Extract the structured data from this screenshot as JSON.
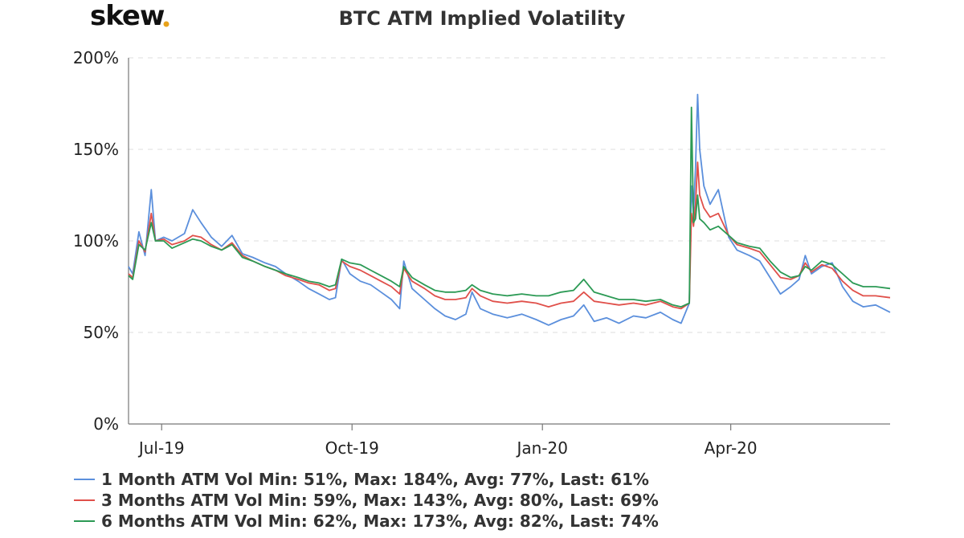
{
  "logo": {
    "text": "skew",
    "dot_color": "#e8a21a"
  },
  "chart_data": {
    "type": "line",
    "title": "BTC ATM Implied Volatility",
    "xlabel": "",
    "ylabel": "",
    "ylim": [
      0,
      200
    ],
    "y_ticks": [
      0,
      50,
      100,
      150,
      200
    ],
    "y_tick_labels": [
      "0%",
      "50%",
      "100%",
      "150%",
      "200%"
    ],
    "y_grid": true,
    "xlim": [
      "2019-06-15",
      "2020-06-17"
    ],
    "x_ticks": [
      "2019-07-01",
      "2019-10-01",
      "2020-01-01",
      "2020-04-01"
    ],
    "x_tick_labels": [
      "Jul-19",
      "Oct-19",
      "Jan-20",
      "Apr-20"
    ],
    "legend_position": "bottom-left",
    "series": [
      {
        "name": "1 Month ATM Vol",
        "color": "#5b8fdc",
        "legend": "1 Month ATM Vol Min: 51%, Max: 184%, Avg: 77%, Last: 61%",
        "points": [
          [
            "2019-06-15",
            86
          ],
          [
            "2019-06-17",
            82
          ],
          [
            "2019-06-20",
            105
          ],
          [
            "2019-06-23",
            92
          ],
          [
            "2019-06-26",
            128
          ],
          [
            "2019-06-28",
            100
          ],
          [
            "2019-07-02",
            102
          ],
          [
            "2019-07-06",
            100
          ],
          [
            "2019-07-12",
            104
          ],
          [
            "2019-07-16",
            117
          ],
          [
            "2019-07-20",
            110
          ],
          [
            "2019-07-25",
            102
          ],
          [
            "2019-07-30",
            97
          ],
          [
            "2019-08-04",
            103
          ],
          [
            "2019-08-09",
            93
          ],
          [
            "2019-08-14",
            91
          ],
          [
            "2019-08-20",
            88
          ],
          [
            "2019-08-25",
            86
          ],
          [
            "2019-08-30",
            82
          ],
          [
            "2019-09-05",
            78
          ],
          [
            "2019-09-10",
            74
          ],
          [
            "2019-09-15",
            71
          ],
          [
            "2019-09-20",
            68
          ],
          [
            "2019-09-23",
            69
          ],
          [
            "2019-09-26",
            90
          ],
          [
            "2019-09-30",
            82
          ],
          [
            "2019-10-05",
            78
          ],
          [
            "2019-10-10",
            76
          ],
          [
            "2019-10-15",
            72
          ],
          [
            "2019-10-20",
            68
          ],
          [
            "2019-10-24",
            63
          ],
          [
            "2019-10-26",
            89
          ],
          [
            "2019-10-30",
            74
          ],
          [
            "2019-11-05",
            68
          ],
          [
            "2019-11-10",
            63
          ],
          [
            "2019-11-15",
            59
          ],
          [
            "2019-11-20",
            57
          ],
          [
            "2019-11-25",
            60
          ],
          [
            "2019-11-28",
            72
          ],
          [
            "2019-12-02",
            63
          ],
          [
            "2019-12-08",
            60
          ],
          [
            "2019-12-15",
            58
          ],
          [
            "2019-12-22",
            60
          ],
          [
            "2019-12-29",
            57
          ],
          [
            "2020-01-04",
            54
          ],
          [
            "2020-01-10",
            57
          ],
          [
            "2020-01-16",
            59
          ],
          [
            "2020-01-21",
            65
          ],
          [
            "2020-01-26",
            56
          ],
          [
            "2020-02-01",
            58
          ],
          [
            "2020-02-07",
            55
          ],
          [
            "2020-02-14",
            59
          ],
          [
            "2020-02-20",
            58
          ],
          [
            "2020-02-27",
            61
          ],
          [
            "2020-03-04",
            57
          ],
          [
            "2020-03-08",
            55
          ],
          [
            "2020-03-12",
            66
          ],
          [
            "2020-03-13",
            130
          ],
          [
            "2020-03-14",
            115
          ],
          [
            "2020-03-15",
            140
          ],
          [
            "2020-03-16",
            180
          ],
          [
            "2020-03-17",
            150
          ],
          [
            "2020-03-19",
            130
          ],
          [
            "2020-03-22",
            120
          ],
          [
            "2020-03-26",
            128
          ],
          [
            "2020-03-31",
            102
          ],
          [
            "2020-04-04",
            95
          ],
          [
            "2020-04-10",
            92
          ],
          [
            "2020-04-15",
            89
          ],
          [
            "2020-04-20",
            80
          ],
          [
            "2020-04-25",
            71
          ],
          [
            "2020-04-30",
            75
          ],
          [
            "2020-05-04",
            79
          ],
          [
            "2020-05-07",
            92
          ],
          [
            "2020-05-10",
            82
          ],
          [
            "2020-05-15",
            86
          ],
          [
            "2020-05-20",
            88
          ],
          [
            "2020-05-25",
            75
          ],
          [
            "2020-05-30",
            67
          ],
          [
            "2020-06-04",
            64
          ],
          [
            "2020-06-10",
            65
          ],
          [
            "2020-06-17",
            61
          ]
        ]
      },
      {
        "name": "3 Months ATM Vol",
        "color": "#e0504a",
        "legend": "3 Months ATM Vol Min: 59%, Max: 143%, Avg: 80%, Last: 69%",
        "points": [
          [
            "2019-06-15",
            82
          ],
          [
            "2019-06-17",
            80
          ],
          [
            "2019-06-20",
            100
          ],
          [
            "2019-06-23",
            94
          ],
          [
            "2019-06-26",
            115
          ],
          [
            "2019-06-28",
            100
          ],
          [
            "2019-07-02",
            101
          ],
          [
            "2019-07-06",
            98
          ],
          [
            "2019-07-12",
            100
          ],
          [
            "2019-07-16",
            103
          ],
          [
            "2019-07-20",
            102
          ],
          [
            "2019-07-25",
            98
          ],
          [
            "2019-07-30",
            95
          ],
          [
            "2019-08-04",
            99
          ],
          [
            "2019-08-09",
            92
          ],
          [
            "2019-08-14",
            89
          ],
          [
            "2019-08-20",
            86
          ],
          [
            "2019-08-25",
            84
          ],
          [
            "2019-08-30",
            81
          ],
          [
            "2019-09-05",
            79
          ],
          [
            "2019-09-10",
            77
          ],
          [
            "2019-09-15",
            76
          ],
          [
            "2019-09-20",
            73
          ],
          [
            "2019-09-23",
            74
          ],
          [
            "2019-09-26",
            89
          ],
          [
            "2019-09-30",
            86
          ],
          [
            "2019-10-05",
            84
          ],
          [
            "2019-10-10",
            81
          ],
          [
            "2019-10-15",
            78
          ],
          [
            "2019-10-20",
            75
          ],
          [
            "2019-10-24",
            71
          ],
          [
            "2019-10-26",
            85
          ],
          [
            "2019-10-30",
            78
          ],
          [
            "2019-11-05",
            74
          ],
          [
            "2019-11-10",
            70
          ],
          [
            "2019-11-15",
            68
          ],
          [
            "2019-11-20",
            68
          ],
          [
            "2019-11-25",
            69
          ],
          [
            "2019-11-28",
            74
          ],
          [
            "2019-12-02",
            70
          ],
          [
            "2019-12-08",
            67
          ],
          [
            "2019-12-15",
            66
          ],
          [
            "2019-12-22",
            67
          ],
          [
            "2019-12-29",
            66
          ],
          [
            "2020-01-04",
            64
          ],
          [
            "2020-01-10",
            66
          ],
          [
            "2020-01-16",
            67
          ],
          [
            "2020-01-21",
            72
          ],
          [
            "2020-01-26",
            67
          ],
          [
            "2020-02-01",
            66
          ],
          [
            "2020-02-07",
            65
          ],
          [
            "2020-02-14",
            66
          ],
          [
            "2020-02-20",
            65
          ],
          [
            "2020-02-27",
            67
          ],
          [
            "2020-03-04",
            64
          ],
          [
            "2020-03-08",
            63
          ],
          [
            "2020-03-12",
            66
          ],
          [
            "2020-03-13",
            115
          ],
          [
            "2020-03-14",
            108
          ],
          [
            "2020-03-15",
            120
          ],
          [
            "2020-03-16",
            143
          ],
          [
            "2020-03-17",
            125
          ],
          [
            "2020-03-19",
            118
          ],
          [
            "2020-03-22",
            113
          ],
          [
            "2020-03-26",
            115
          ],
          [
            "2020-03-31",
            103
          ],
          [
            "2020-04-04",
            98
          ],
          [
            "2020-04-10",
            96
          ],
          [
            "2020-04-15",
            94
          ],
          [
            "2020-04-20",
            87
          ],
          [
            "2020-04-25",
            80
          ],
          [
            "2020-04-30",
            79
          ],
          [
            "2020-05-04",
            81
          ],
          [
            "2020-05-07",
            88
          ],
          [
            "2020-05-10",
            83
          ],
          [
            "2020-05-15",
            87
          ],
          [
            "2020-05-20",
            85
          ],
          [
            "2020-05-25",
            78
          ],
          [
            "2020-05-30",
            73
          ],
          [
            "2020-06-04",
            70
          ],
          [
            "2020-06-10",
            70
          ],
          [
            "2020-06-17",
            69
          ]
        ]
      },
      {
        "name": "6 Months ATM Vol",
        "color": "#2c9a55",
        "legend": "6 Months ATM Vol Min: 62%, Max: 173%, Avg: 82%, Last: 74%",
        "points": [
          [
            "2019-06-15",
            81
          ],
          [
            "2019-06-17",
            79
          ],
          [
            "2019-06-20",
            98
          ],
          [
            "2019-06-23",
            95
          ],
          [
            "2019-06-26",
            110
          ],
          [
            "2019-06-28",
            100
          ],
          [
            "2019-07-02",
            100
          ],
          [
            "2019-07-06",
            96
          ],
          [
            "2019-07-12",
            99
          ],
          [
            "2019-07-16",
            101
          ],
          [
            "2019-07-20",
            100
          ],
          [
            "2019-07-25",
            97
          ],
          [
            "2019-07-30",
            95
          ],
          [
            "2019-08-04",
            98
          ],
          [
            "2019-08-09",
            91
          ],
          [
            "2019-08-14",
            89
          ],
          [
            "2019-08-20",
            86
          ],
          [
            "2019-08-25",
            84
          ],
          [
            "2019-08-30",
            82
          ],
          [
            "2019-09-05",
            80
          ],
          [
            "2019-09-10",
            78
          ],
          [
            "2019-09-15",
            77
          ],
          [
            "2019-09-20",
            75
          ],
          [
            "2019-09-23",
            76
          ],
          [
            "2019-09-26",
            90
          ],
          [
            "2019-09-30",
            88
          ],
          [
            "2019-10-05",
            87
          ],
          [
            "2019-10-10",
            84
          ],
          [
            "2019-10-15",
            81
          ],
          [
            "2019-10-20",
            78
          ],
          [
            "2019-10-24",
            75
          ],
          [
            "2019-10-26",
            86
          ],
          [
            "2019-10-30",
            80
          ],
          [
            "2019-11-05",
            76
          ],
          [
            "2019-11-10",
            73
          ],
          [
            "2019-11-15",
            72
          ],
          [
            "2019-11-20",
            72
          ],
          [
            "2019-11-25",
            73
          ],
          [
            "2019-11-28",
            76
          ],
          [
            "2019-12-02",
            73
          ],
          [
            "2019-12-08",
            71
          ],
          [
            "2019-12-15",
            70
          ],
          [
            "2019-12-22",
            71
          ],
          [
            "2019-12-29",
            70
          ],
          [
            "2020-01-04",
            70
          ],
          [
            "2020-01-10",
            72
          ],
          [
            "2020-01-16",
            73
          ],
          [
            "2020-01-21",
            79
          ],
          [
            "2020-01-26",
            72
          ],
          [
            "2020-02-01",
            70
          ],
          [
            "2020-02-07",
            68
          ],
          [
            "2020-02-14",
            68
          ],
          [
            "2020-02-20",
            67
          ],
          [
            "2020-02-27",
            68
          ],
          [
            "2020-03-04",
            65
          ],
          [
            "2020-03-08",
            64
          ],
          [
            "2020-03-12",
            66
          ],
          [
            "2020-03-13",
            173
          ],
          [
            "2020-03-14",
            110
          ],
          [
            "2020-03-15",
            112
          ],
          [
            "2020-03-16",
            125
          ],
          [
            "2020-03-17",
            112
          ],
          [
            "2020-03-19",
            110
          ],
          [
            "2020-03-22",
            106
          ],
          [
            "2020-03-26",
            108
          ],
          [
            "2020-03-31",
            103
          ],
          [
            "2020-04-04",
            99
          ],
          [
            "2020-04-10",
            97
          ],
          [
            "2020-04-15",
            96
          ],
          [
            "2020-04-20",
            89
          ],
          [
            "2020-04-25",
            83
          ],
          [
            "2020-04-30",
            80
          ],
          [
            "2020-05-04",
            81
          ],
          [
            "2020-05-07",
            86
          ],
          [
            "2020-05-10",
            84
          ],
          [
            "2020-05-15",
            89
          ],
          [
            "2020-05-20",
            87
          ],
          [
            "2020-05-25",
            82
          ],
          [
            "2020-05-30",
            77
          ],
          [
            "2020-06-04",
            75
          ],
          [
            "2020-06-10",
            75
          ],
          [
            "2020-06-17",
            74
          ]
        ]
      }
    ]
  }
}
